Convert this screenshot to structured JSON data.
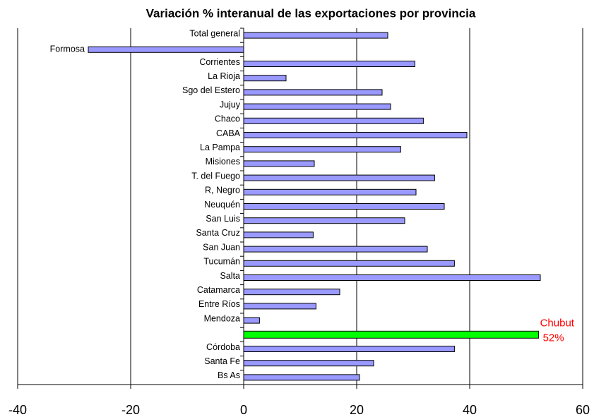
{
  "chart_data": {
    "type": "hbar",
    "title": "Variación % interanual de las exportaciones por provincia",
    "categories": [
      "Total general",
      "Formosa",
      "Corrientes",
      "La Rioja",
      "Sgo del Estero",
      "Jujuy",
      "Chaco",
      "CABA",
      "La Pampa",
      "Misiones",
      "T. del Fuego",
      "R, Negro",
      "Neuquén",
      "San Luis",
      "Santa Cruz",
      "San Juan",
      "Tucumán",
      "Salta",
      "Catamarca",
      "Entre Ríos",
      "Mendoza",
      null,
      "Córdoba",
      "Santa Fe",
      "Bs As"
    ],
    "values": [
      25.5,
      -27.5,
      30.3,
      7.5,
      24.5,
      26,
      31.8,
      39.5,
      27.8,
      12.5,
      33.8,
      30.5,
      35.5,
      28.5,
      12.3,
      32.5,
      37.3,
      52.5,
      17,
      12.8,
      2.8,
      52.2,
      37.3,
      23,
      20.5
    ],
    "colors": [
      "#9999ff",
      "#9999ff",
      "#9999ff",
      "#9999ff",
      "#9999ff",
      "#9999ff",
      "#9999ff",
      "#9999ff",
      "#9999ff",
      "#9999ff",
      "#9999ff",
      "#9999ff",
      "#9999ff",
      "#9999ff",
      "#9999ff",
      "#9999ff",
      "#9999ff",
      "#9999ff",
      "#9999ff",
      "#9999ff",
      "#9999ff",
      "#00ff00",
      "#9999ff",
      "#9999ff",
      "#9999ff"
    ],
    "annotation": {
      "lines": [
        "Chubut",
        "52%"
      ],
      "color": "#ff0000"
    },
    "xlim": [
      -40,
      60
    ],
    "xticks": [
      -40,
      -20,
      0,
      20,
      40,
      60
    ],
    "grid": true
  }
}
